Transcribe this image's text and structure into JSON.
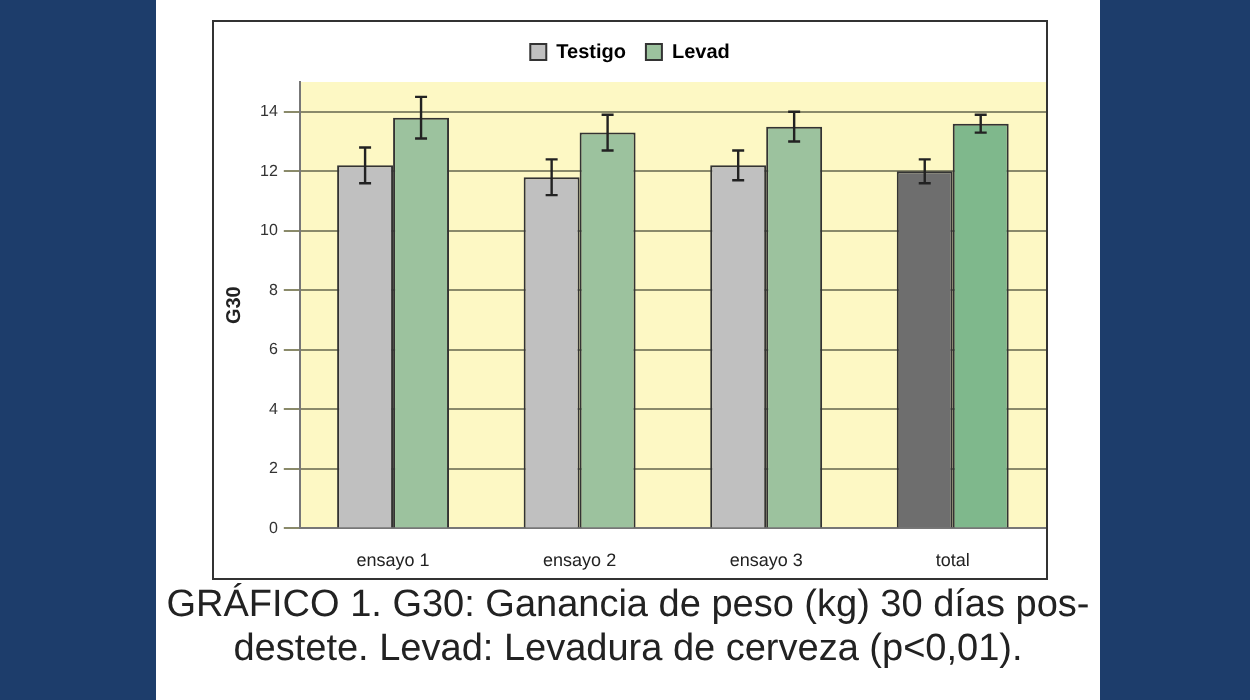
{
  "chart_data": {
    "type": "bar",
    "ylabel": "G30",
    "categories": [
      "ensayo 1",
      "ensayo 2",
      "ensayo 3",
      "total"
    ],
    "series": [
      {
        "name": "Testigo",
        "color": "#c0c0c0",
        "colors": [
          "#c0c0c0",
          "#c0c0c0",
          "#c0c0c0",
          "#6e6e6e"
        ],
        "values": [
          12.2,
          11.8,
          12.2,
          12.0
        ],
        "errors": [
          0.6,
          0.6,
          0.5,
          0.4
        ]
      },
      {
        "name": "Levad",
        "color": "#9cc29e",
        "colors": [
          "#9cc29e",
          "#9cc29e",
          "#9cc29e",
          "#7fb88c"
        ],
        "values": [
          13.8,
          13.3,
          13.5,
          13.6
        ],
        "errors": [
          0.7,
          0.6,
          0.5,
          0.3
        ]
      }
    ],
    "ylim": [
      0,
      15
    ],
    "yticks": [
      0,
      2,
      4,
      6,
      8,
      10,
      12,
      14
    ],
    "grid": "y",
    "legend": "top",
    "annotations": [
      "GRÁFICO 1. G30: Ganancia de peso (kg) 30 días pos-destete. Levad: Levadura de cerveza (p<0,01)."
    ]
  }
}
